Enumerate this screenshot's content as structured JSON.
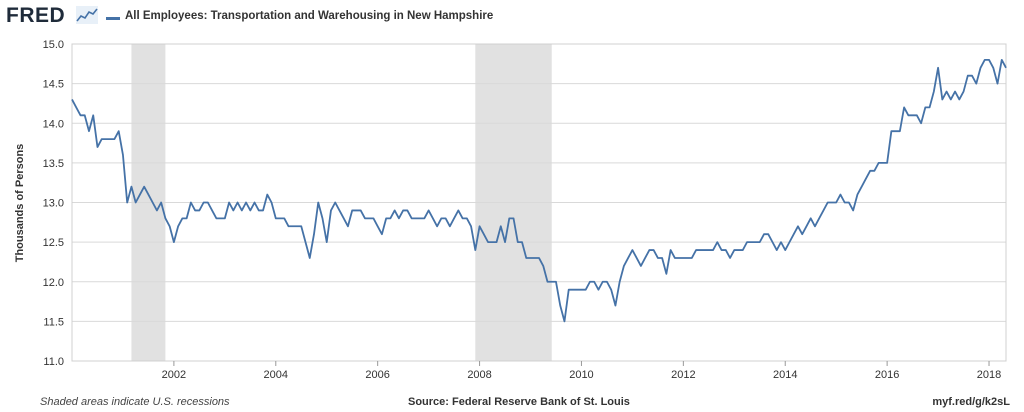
{
  "header": {
    "logo_text": "FRED",
    "logo_icon": "line-graph-icon",
    "series_label": "All Employees: Transportation and Warehousing in New Hampshire"
  },
  "footer": {
    "note": "Shaded areas indicate U.S. recessions",
    "source": "Source: Federal Reserve Bank of St. Louis",
    "link": "myf.red/g/k2sL"
  },
  "colors": {
    "series": "#4572a7",
    "recession": "#e1e1e1",
    "grid": "#d9d9d9",
    "plot_border": "#d0d0d0"
  },
  "chart_data": {
    "type": "line",
    "title": "",
    "xlabel": "",
    "ylabel": "Thousands of Persons",
    "xlim": [
      "2000-01",
      "2018-05"
    ],
    "ylim": [
      11.0,
      15.0
    ],
    "yticks": [
      "11.0",
      "11.5",
      "12.0",
      "12.5",
      "13.0",
      "13.5",
      "14.0",
      "14.5",
      "15.0"
    ],
    "xticks": [
      "2002",
      "2004",
      "2006",
      "2008",
      "2010",
      "2012",
      "2014",
      "2016",
      "2018"
    ],
    "grid": true,
    "legend": "top-left",
    "recessions": [
      {
        "start": "2001-03",
        "end": "2001-11"
      },
      {
        "start": "2007-12",
        "end": "2009-06"
      }
    ],
    "series": [
      {
        "name": "All Employees: Transportation and Warehousing in New Hampshire",
        "start": "2000-01",
        "frequency": "monthly",
        "values": [
          14.3,
          14.2,
          14.1,
          14.1,
          13.9,
          14.1,
          13.7,
          13.8,
          13.8,
          13.8,
          13.8,
          13.9,
          13.6,
          13.0,
          13.2,
          13.0,
          13.1,
          13.2,
          13.1,
          13.0,
          12.9,
          13.0,
          12.8,
          12.7,
          12.5,
          12.7,
          12.8,
          12.8,
          13.0,
          12.9,
          12.9,
          13.0,
          13.0,
          12.9,
          12.8,
          12.8,
          12.8,
          13.0,
          12.9,
          13.0,
          12.9,
          13.0,
          12.9,
          13.0,
          12.9,
          12.9,
          13.1,
          13.0,
          12.8,
          12.8,
          12.8,
          12.7,
          12.7,
          12.7,
          12.7,
          12.5,
          12.3,
          12.6,
          13.0,
          12.8,
          12.5,
          12.9,
          13.0,
          12.9,
          12.8,
          12.7,
          12.9,
          12.9,
          12.9,
          12.8,
          12.8,
          12.8,
          12.7,
          12.6,
          12.8,
          12.8,
          12.9,
          12.8,
          12.9,
          12.9,
          12.8,
          12.8,
          12.8,
          12.8,
          12.9,
          12.8,
          12.7,
          12.8,
          12.8,
          12.7,
          12.8,
          12.9,
          12.8,
          12.8,
          12.7,
          12.4,
          12.7,
          12.6,
          12.5,
          12.5,
          12.5,
          12.7,
          12.5,
          12.8,
          12.8,
          12.5,
          12.5,
          12.3,
          12.3,
          12.3,
          12.3,
          12.2,
          12.0,
          12.0,
          12.0,
          11.7,
          11.5,
          11.9,
          11.9,
          11.9,
          11.9,
          11.9,
          12.0,
          12.0,
          11.9,
          12.0,
          12.0,
          11.9,
          11.7,
          12.0,
          12.2,
          12.3,
          12.4,
          12.3,
          12.2,
          12.3,
          12.4,
          12.4,
          12.3,
          12.3,
          12.1,
          12.4,
          12.3,
          12.3,
          12.3,
          12.3,
          12.3,
          12.4,
          12.4,
          12.4,
          12.4,
          12.4,
          12.5,
          12.4,
          12.4,
          12.3,
          12.4,
          12.4,
          12.4,
          12.5,
          12.5,
          12.5,
          12.5,
          12.6,
          12.6,
          12.5,
          12.4,
          12.5,
          12.4,
          12.5,
          12.6,
          12.7,
          12.6,
          12.7,
          12.8,
          12.7,
          12.8,
          12.9,
          13.0,
          13.0,
          13.0,
          13.1,
          13.0,
          13.0,
          12.9,
          13.1,
          13.2,
          13.3,
          13.4,
          13.4,
          13.5,
          13.5,
          13.5,
          13.9,
          13.9,
          13.9,
          14.2,
          14.1,
          14.1,
          14.1,
          14.0,
          14.2,
          14.2,
          14.4,
          14.7,
          14.3,
          14.4,
          14.3,
          14.4,
          14.3,
          14.4,
          14.6,
          14.6,
          14.5,
          14.7,
          14.8,
          14.8,
          14.7,
          14.5,
          14.8,
          14.7
        ]
      }
    ]
  }
}
